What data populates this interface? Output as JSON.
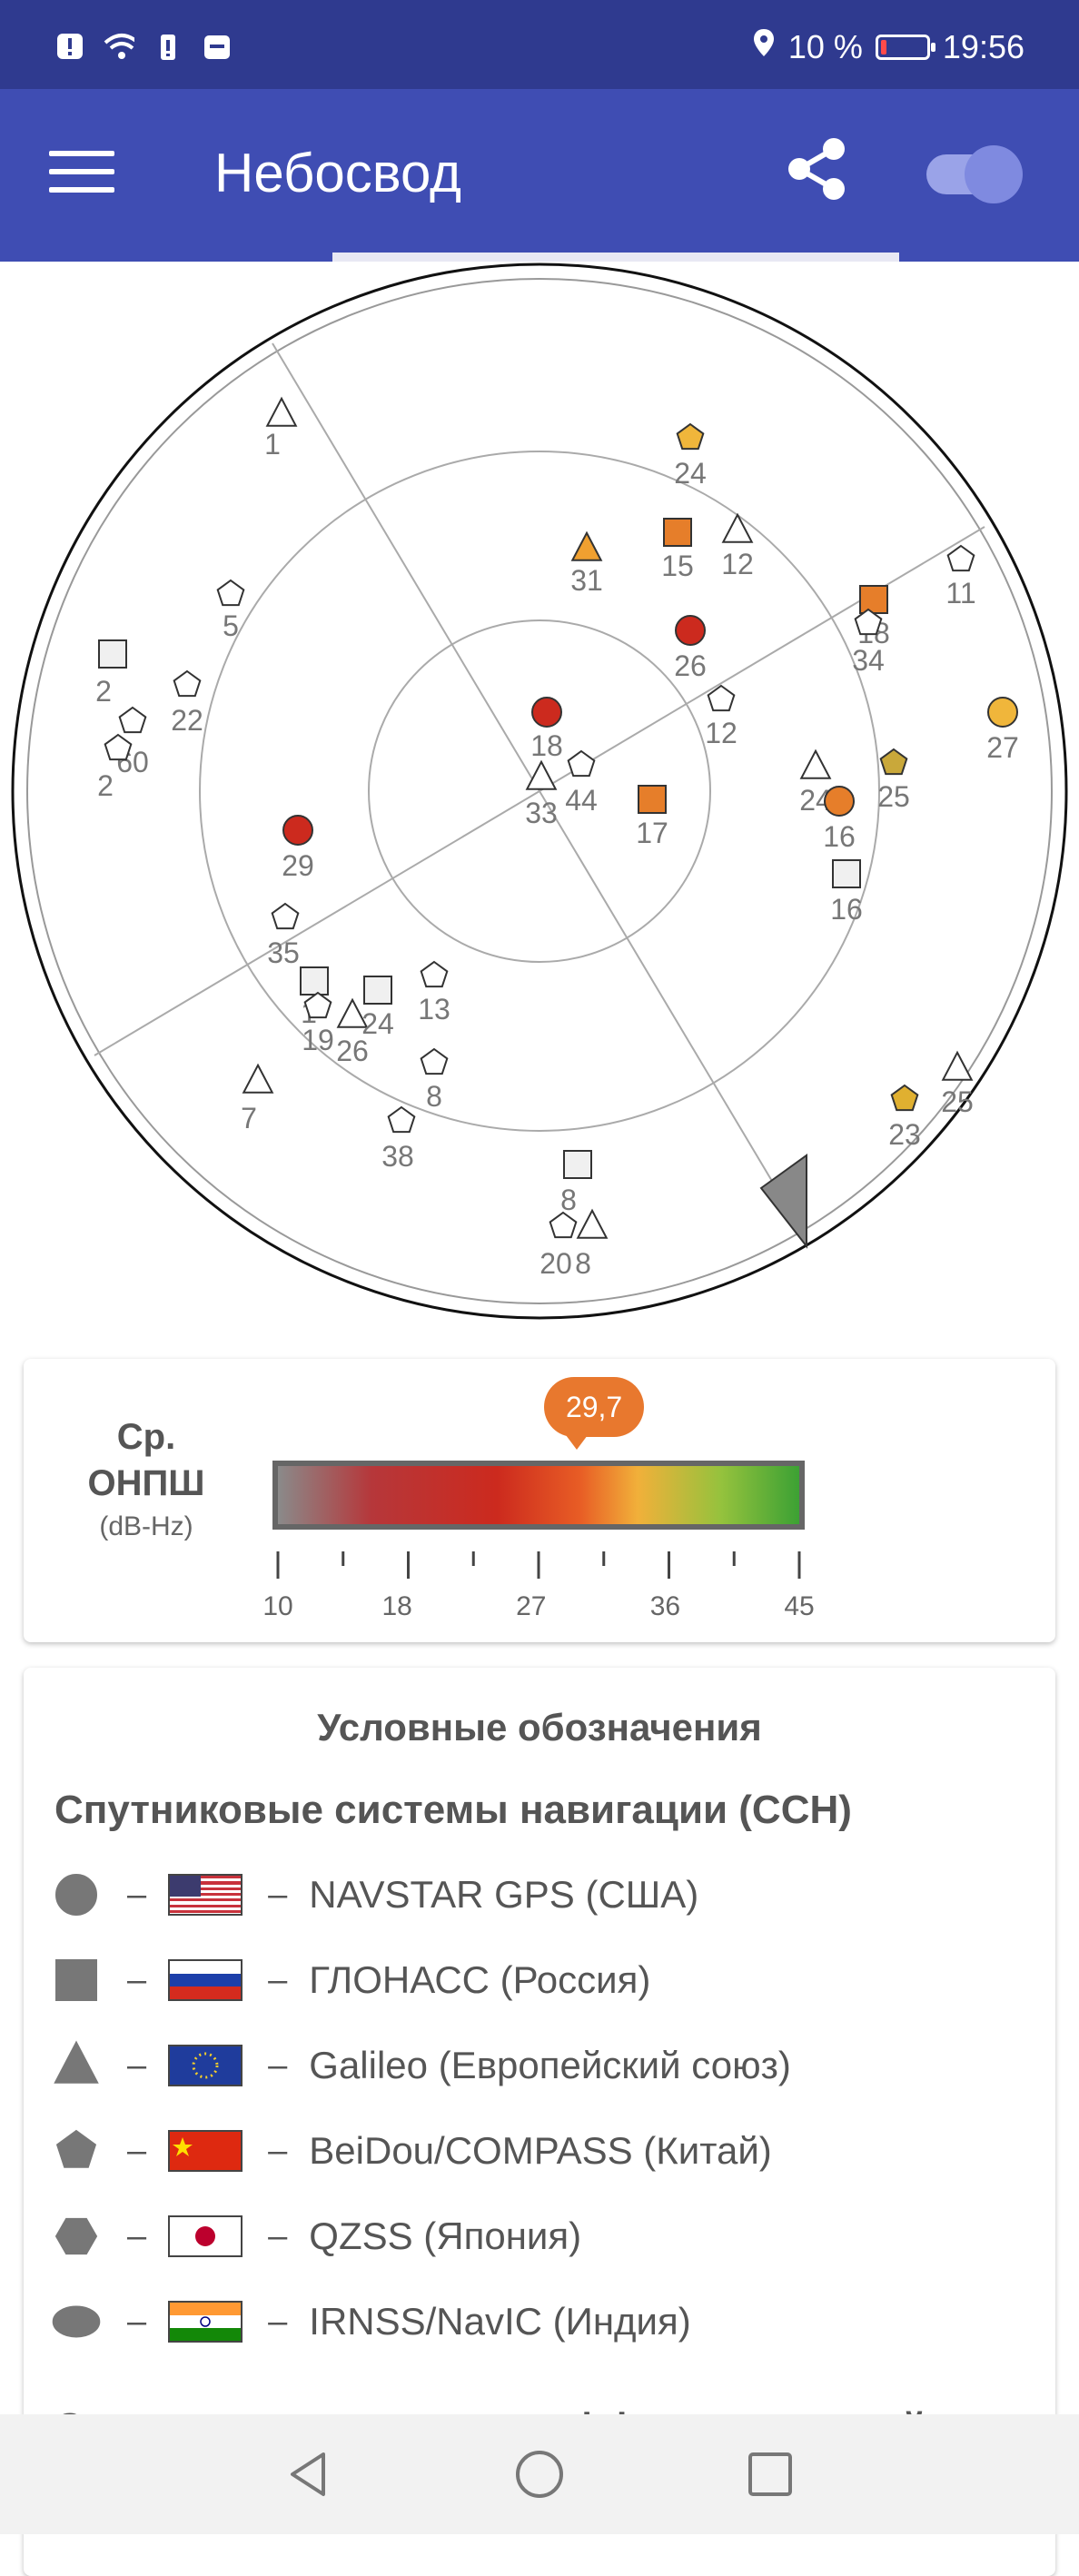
{
  "status_bar": {
    "battery_text": "10 %",
    "time": "19:56",
    "icons": [
      "alert-icon",
      "wifi-icon",
      "battery-alert-icon",
      "huawei-icon",
      "location-icon",
      "battery-icon"
    ]
  },
  "app_bar": {
    "title": "Небосвод",
    "icons": [
      "menu-icon",
      "share-icon",
      "toggle-switch"
    ]
  },
  "sky_plot": {
    "satellites": [
      {
        "id": "1",
        "shape": "triangle",
        "color": "#ffffff"
      },
      {
        "id": "24",
        "shape": "pentagon",
        "color": "#f0b63b"
      },
      {
        "id": "31",
        "shape": "triangle",
        "color": "#f0a030"
      },
      {
        "id": "15",
        "shape": "square",
        "color": "#e67e2a"
      },
      {
        "id": "12",
        "shape": "triangle",
        "color": "#ffffff"
      },
      {
        "id": "11",
        "shape": "pentagon",
        "color": "#ffffff"
      },
      {
        "id": "18",
        "shape": "square",
        "color": "#e67e2a"
      },
      {
        "id": "34",
        "shape": "pentagon",
        "color": "#ffffff"
      },
      {
        "id": "5",
        "shape": "pentagon",
        "color": "#ffffff"
      },
      {
        "id": "26",
        "shape": "circle",
        "color": "#cc2a1e"
      },
      {
        "id": "2",
        "shape": "square",
        "color": "#f0f0f0"
      },
      {
        "id": "22",
        "shape": "pentagon",
        "color": "#ffffff"
      },
      {
        "id": "12",
        "shape": "pentagon",
        "color": "#ffffff"
      },
      {
        "id": "27",
        "shape": "circle",
        "color": "#f0b63b"
      },
      {
        "id": "60",
        "shape": "pentagon",
        "color": "#ffffff"
      },
      {
        "id": "2",
        "shape": "pentagon",
        "color": "#ffffff"
      },
      {
        "id": "18",
        "shape": "circle",
        "color": "#cc2a1e"
      },
      {
        "id": "44",
        "shape": "pentagon",
        "color": "#ffffff"
      },
      {
        "id": "33",
        "shape": "triangle",
        "color": "#ffffff"
      },
      {
        "id": "17",
        "shape": "square",
        "color": "#e67e2a"
      },
      {
        "id": "24",
        "shape": "triangle",
        "color": "#ffffff"
      },
      {
        "id": "16",
        "shape": "circle",
        "color": "#e67e2a"
      },
      {
        "id": "25",
        "shape": "pentagon",
        "color": "#c9a83a"
      },
      {
        "id": "16",
        "shape": "square",
        "color": "#f0f0f0"
      },
      {
        "id": "29",
        "shape": "circle",
        "color": "#cc2a1e"
      },
      {
        "id": "35",
        "shape": "pentagon",
        "color": "#ffffff"
      },
      {
        "id": "1",
        "shape": "square",
        "color": "#f0f0f0"
      },
      {
        "id": "19",
        "shape": "pentagon",
        "color": "#ffffff"
      },
      {
        "id": "26",
        "shape": "triangle",
        "color": "#ffffff"
      },
      {
        "id": "24",
        "shape": "square",
        "color": "#f0f0f0"
      },
      {
        "id": "13",
        "shape": "pentagon",
        "color": "#ffffff"
      },
      {
        "id": "8",
        "shape": "pentagon",
        "color": "#ffffff"
      },
      {
        "id": "7",
        "shape": "triangle",
        "color": "#ffffff"
      },
      {
        "id": "38",
        "shape": "pentagon",
        "color": "#ffffff"
      },
      {
        "id": "23",
        "shape": "pentagon",
        "color": "#e0b030"
      },
      {
        "id": "25",
        "shape": "triangle",
        "color": "#ffffff"
      },
      {
        "id": "8",
        "shape": "square",
        "color": "#f0f0f0"
      },
      {
        "id": "20",
        "shape": "pentagon",
        "color": "#ffffff"
      },
      {
        "id": "8",
        "shape": "triangle",
        "color": "#ffffff"
      }
    ]
  },
  "snr": {
    "label_line1": "Ср.",
    "label_line2": "ОНПШ",
    "unit": "(dB-Hz)",
    "value_text": "29,7",
    "value": 29.7,
    "scale_min": 10,
    "scale_max": 45,
    "ticks": [
      "10",
      "18",
      "27",
      "36",
      "45"
    ]
  },
  "legend": {
    "title": "Условные обозначения",
    "section_title": "Спутниковые системы навигации (ССН)",
    "separator": "–",
    "items": [
      {
        "shape": "circle",
        "flag": "us-flag-icon",
        "label": "NAVSTAR GPS (США)"
      },
      {
        "shape": "square",
        "flag": "ru-flag-icon",
        "label": "ГЛОНАСС (Россия)"
      },
      {
        "shape": "triangle",
        "flag": "eu-flag-icon",
        "label": "Galileo (Европейский союз)"
      },
      {
        "shape": "pentagon",
        "flag": "cn-flag-icon",
        "label": "BeiDou/COMPASS (Китай)"
      },
      {
        "shape": "hexagon",
        "flag": "jp-flag-icon",
        "label": "QZSS (Япония)"
      },
      {
        "shape": "ellipse",
        "flag": "in-flag-icon",
        "label": "IRNSS/NavIC (Индия)"
      }
    ],
    "next_section_partial": "Спутниковые системы дифференциальной"
  },
  "nav_bar": {
    "icons": [
      "back-icon",
      "home-icon",
      "recents-icon"
    ]
  }
}
